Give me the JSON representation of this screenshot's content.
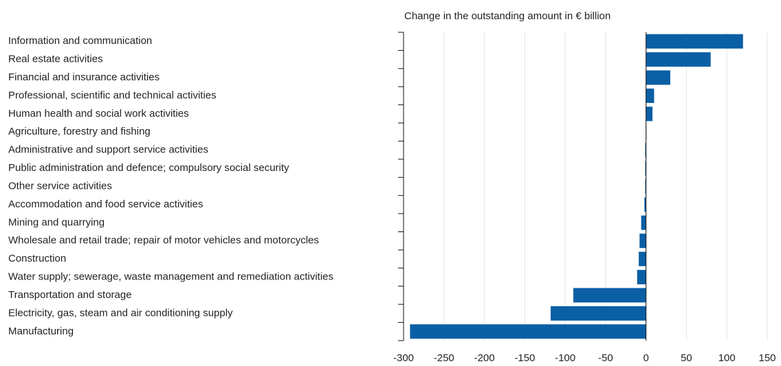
{
  "chart_data": {
    "type": "bar",
    "orientation": "horizontal",
    "x_label": "Change in the outstanding amount in € billion",
    "categories": [
      "Information and communication",
      "Real estate activities",
      "Financial and insurance activities",
      "Professional, scientific and technical activities",
      "Human health and social work activities",
      "Agriculture, forestry and fishing",
      "Administrative and support service activities",
      "Public administration and defence; compulsory social security",
      "Other service activities",
      "Accommodation and food service activities",
      "Mining and quarrying",
      "Wholesale and retail trade; repair of motor vehicles and motorcycles",
      "Construction",
      "Water supply; sewerage, waste management and remediation activities",
      "Transportation and storage",
      "Electricity, gas, steam and air conditioning supply",
      "Manufacturing"
    ],
    "values": [
      120,
      80,
      30,
      10,
      8,
      0.5,
      -1,
      -1,
      -1,
      -2,
      -6,
      -8,
      -9,
      -11,
      -90,
      -118,
      -292
    ],
    "color": "#0b5fa5",
    "xlim": [
      -300,
      150
    ],
    "xticks": [
      -300,
      -250,
      -200,
      -150,
      -100,
      -50,
      0,
      50,
      100,
      150
    ],
    "grid": true
  }
}
